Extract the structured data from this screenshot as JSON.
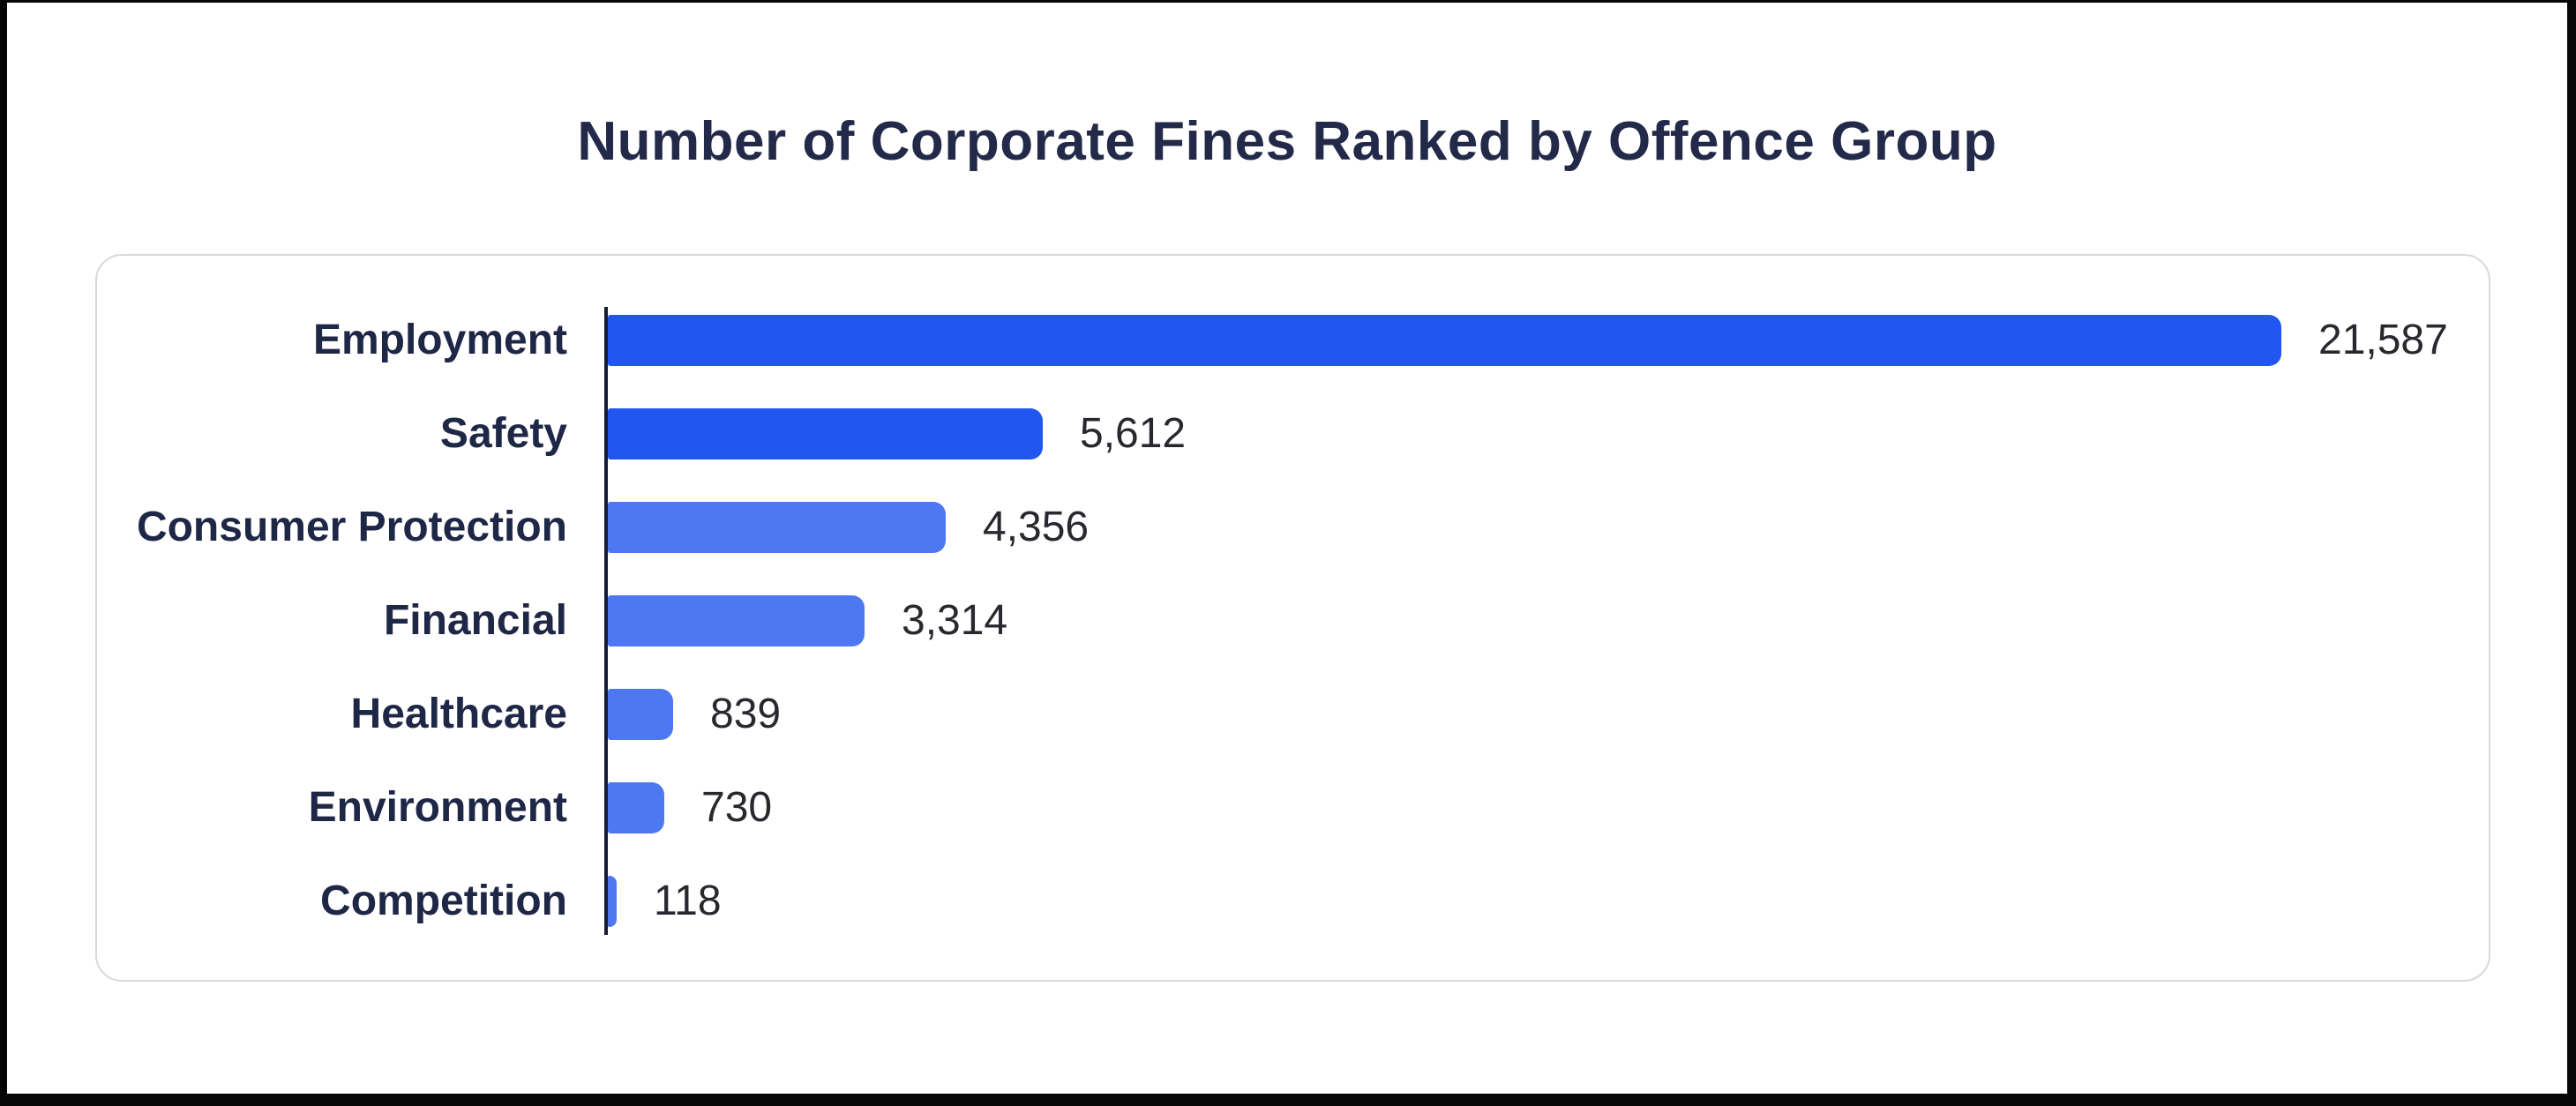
{
  "chart_data": {
    "type": "bar",
    "orientation": "horizontal",
    "title": "Number of Corporate Fines Ranked by Offence Group",
    "categories": [
      "Employment",
      "Safety",
      "Consumer Protection",
      "Financial",
      "Healthcare",
      "Environment",
      "Competition"
    ],
    "values": [
      21587,
      5612,
      4356,
      3314,
      839,
      730,
      118
    ],
    "value_labels": [
      "21,587",
      "5,612",
      "4,356",
      "3,314",
      "839",
      "730",
      "118"
    ],
    "bar_colors": [
      "#2156F0",
      "#2156F0",
      "#4E78F2",
      "#4E78F2",
      "#4E78F2",
      "#4E78F2",
      "#4E78F2"
    ],
    "xlim": [
      0,
      21587
    ],
    "xlabel": "",
    "ylabel": "",
    "grid": false,
    "legend": false,
    "data_labels": "end-of-bar",
    "colors": {
      "title": "#222949",
      "category_label": "#1f2747",
      "value_label": "#28282e",
      "axis_line": "#161c36",
      "card_border": "#d8d8de",
      "page_background": "#ffffff",
      "frame": "#060606"
    }
  }
}
